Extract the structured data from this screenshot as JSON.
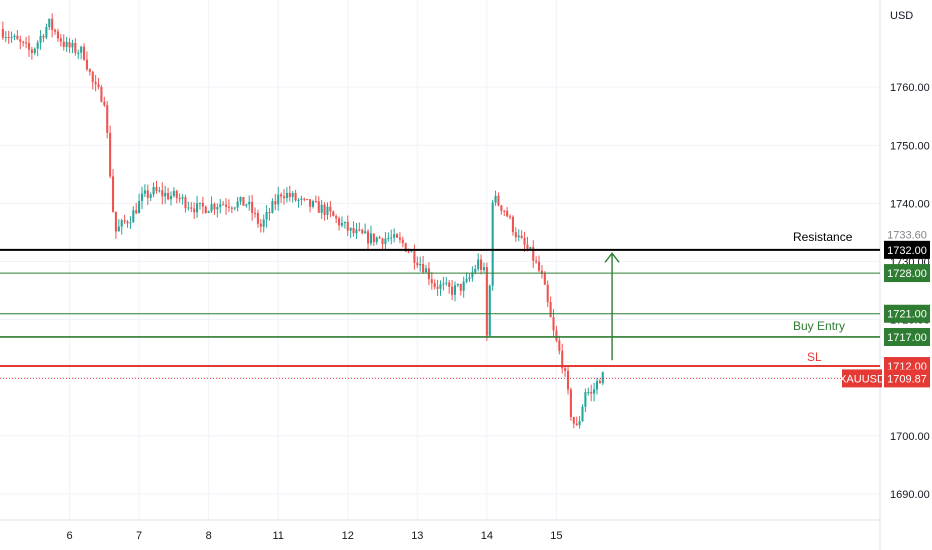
{
  "colors": {
    "up": "#26a69a",
    "down": "#ef5350",
    "grid": "#f0f3fa",
    "resistance": "#000000",
    "level": "#2e7d32",
    "sl": "#e53935"
  },
  "chart_data": {
    "type": "candlestick",
    "symbol": "XAUUSD",
    "currency": "USD",
    "ylim": [
      1685.5,
      1775
    ],
    "y_ticks": [
      1690,
      1700,
      1710,
      1720,
      1730,
      1740,
      1750,
      1760
    ],
    "y_tick_labels": [
      "1690.00",
      "1700.00",
      "1710.00",
      "1720.00",
      "1730.00",
      "1740.00",
      "1750.00",
      "1760.00"
    ],
    "xlim": [
      0,
      13.4
    ],
    "x_ticks": [
      {
        "pos": 1,
        "label": "6"
      },
      {
        "pos": 2,
        "label": "7"
      },
      {
        "pos": 3,
        "label": "8"
      },
      {
        "pos": 4,
        "label": "11"
      },
      {
        "pos": 5,
        "label": "12"
      },
      {
        "pos": 6,
        "label": "13"
      },
      {
        "pos": 7,
        "label": "14"
      },
      {
        "pos": 8,
        "label": "15"
      }
    ],
    "candles_per_day": 24,
    "close_path": [
      [
        0,
        1770
      ],
      [
        0.45,
        1766
      ],
      [
        0.7,
        1771
      ],
      [
        0.95,
        1767
      ],
      [
        1.2,
        1766
      ],
      [
        1.35,
        1760
      ],
      [
        1.5,
        1758
      ],
      [
        1.65,
        1735
      ],
      [
        1.9,
        1738
      ],
      [
        2.05,
        1741
      ],
      [
        2.2,
        1742
      ],
      [
        2.55,
        1741
      ],
      [
        2.85,
        1739
      ],
      [
        3.15,
        1740
      ],
      [
        3.55,
        1740
      ],
      [
        3.75,
        1736
      ],
      [
        3.85,
        1738
      ],
      [
        4.05,
        1742
      ],
      [
        4.35,
        1740
      ],
      [
        4.65,
        1739
      ],
      [
        4.85,
        1737
      ],
      [
        5.05,
        1735
      ],
      [
        5.3,
        1734
      ],
      [
        5.6,
        1734
      ],
      [
        5.8,
        1733
      ],
      [
        5.95,
        1731
      ],
      [
        6.1,
        1729
      ],
      [
        6.25,
        1726
      ],
      [
        6.5,
        1725
      ],
      [
        6.7,
        1726
      ],
      [
        6.88,
        1730
      ],
      [
        6.96,
        1728
      ],
      [
        7.0,
        1717
      ],
      [
        7.04,
        1725
      ],
      [
        7.08,
        1741
      ],
      [
        7.25,
        1739
      ],
      [
        7.45,
        1734
      ],
      [
        7.65,
        1731
      ],
      [
        7.8,
        1727
      ],
      [
        7.95,
        1718
      ],
      [
        8.1,
        1712
      ],
      [
        8.22,
        1703
      ],
      [
        8.3,
        1701
      ],
      [
        8.42,
        1708
      ],
      [
        8.5,
        1707
      ],
      [
        8.62,
        1710
      ],
      [
        8.7,
        1710.3
      ]
    ],
    "levels": [
      {
        "id": "resistance",
        "value": 1732,
        "label": "1732.00",
        "annotation": "Resistance"
      },
      {
        "id": "level-1728",
        "value": 1728,
        "label": "1728.00"
      },
      {
        "id": "level-1721",
        "value": 1721,
        "label": "1721.00"
      },
      {
        "id": "level-1717",
        "value": 1717,
        "label": "1717.00",
        "annotation": "Buy Entry"
      },
      {
        "id": "stop-loss",
        "value": 1712,
        "label": "1712.00",
        "annotation": "SL"
      }
    ],
    "current_price": {
      "value": 1709.87,
      "label": "1709.87",
      "symbol_label": "XAUUSD"
    },
    "hidden_tag_text": "1733.60",
    "arrow": {
      "x": 8.8,
      "from": 1713,
      "to": 1731.4
    }
  }
}
